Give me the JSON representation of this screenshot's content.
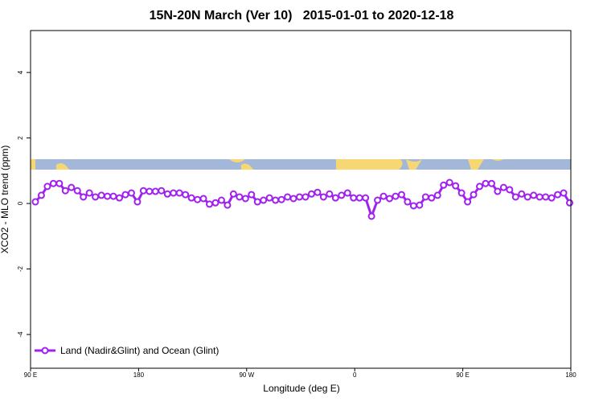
{
  "chart_data": {
    "type": "line",
    "title": "15N-20N March (Ver 10)   2015-01-01 to 2020-12-18",
    "x_label": "Longitude (deg E)",
    "y_label": "XCO2 - MLO trend (ppm)",
    "x": [
      94,
      99,
      104,
      109,
      114,
      119,
      124,
      129,
      134,
      139,
      144,
      149,
      154,
      159,
      164,
      169,
      174,
      179,
      184,
      189,
      194,
      199,
      204,
      209,
      214,
      219,
      224,
      229,
      234,
      239,
      244,
      249,
      254,
      259,
      264,
      269,
      274,
      279,
      284,
      289,
      294,
      299,
      304,
      309,
      314,
      319,
      324,
      329,
      334,
      339,
      344,
      349,
      354,
      359,
      364,
      369,
      374,
      379,
      384,
      389,
      394,
      399,
      404,
      409,
      414,
      419,
      424,
      429,
      434,
      439,
      444,
      449,
      454,
      459,
      464,
      469,
      474,
      479,
      484,
      489,
      494,
      499,
      504,
      509,
      514,
      519,
      524,
      529,
      534,
      539
    ],
    "series": [
      {
        "name": "Land (Nadir&Glint) and Ocean (Glint)",
        "color": "#a020f0",
        "values": [
          0.05,
          0.25,
          0.52,
          0.61,
          0.61,
          0.39,
          0.49,
          0.39,
          0.2,
          0.32,
          0.2,
          0.25,
          0.22,
          0.22,
          0.17,
          0.27,
          0.32,
          0.05,
          0.39,
          0.37,
          0.37,
          0.39,
          0.29,
          0.32,
          0.32,
          0.27,
          0.17,
          0.12,
          0.15,
          -0.02,
          0.02,
          0.1,
          -0.05,
          0.29,
          0.2,
          0.15,
          0.27,
          0.05,
          0.1,
          0.17,
          0.1,
          0.12,
          0.2,
          0.15,
          0.2,
          0.2,
          0.29,
          0.34,
          0.2,
          0.29,
          0.17,
          0.25,
          0.32,
          0.17,
          0.17,
          0.17,
          -0.39,
          0.1,
          0.22,
          0.15,
          0.22,
          0.27,
          0.05,
          -0.07,
          -0.05,
          0.2,
          0.17,
          0.25,
          0.56,
          0.64,
          0.54,
          0.32,
          0.05,
          0.27,
          0.52,
          0.61,
          0.61,
          0.37,
          0.49,
          0.42,
          0.2,
          0.29,
          0.2,
          0.25,
          0.2,
          0.2,
          0.17,
          0.27,
          0.32,
          0.02
        ]
      }
    ],
    "xlim": [
      90,
      540
    ],
    "xticks": [
      {
        "value": 90,
        "label": "90 E"
      },
      180,
      {
        "value": 270,
        "label": "90 W"
      },
      {
        "value": 360,
        "label": "0"
      },
      {
        "value": 450,
        "label": "90 E"
      },
      {
        "value": 540,
        "label": "180"
      }
    ],
    "ylim": [
      -5.03,
      5.28
    ],
    "yticks": [
      -4,
      -2,
      0,
      2,
      4
    ],
    "legend": "bottom-left"
  }
}
